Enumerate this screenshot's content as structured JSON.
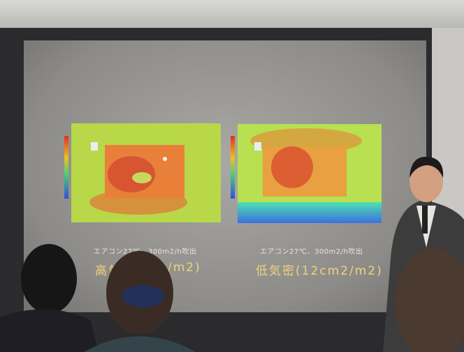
{
  "slide": {
    "left_panel": {
      "caption": "エアコン27℃、300m2/h吹出",
      "title_start": "高気",
      "title_end": "/m2)"
    },
    "right_panel": {
      "caption": "エアコン27℃、300m2/h吹出",
      "title": "低気密(12cm2/m2)"
    }
  }
}
